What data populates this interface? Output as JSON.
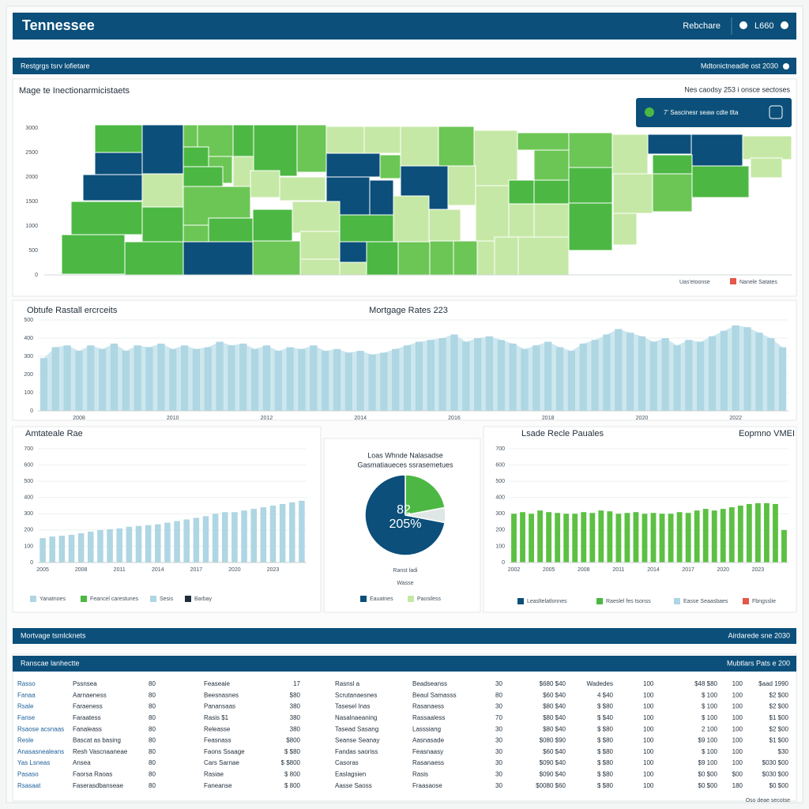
{
  "header": {
    "title": "Tennessee",
    "menu": "Rebchare",
    "year": "L660"
  },
  "section_1": {
    "title": "Restgrgs tsrv lofietare",
    "note": "Mdtonictneadle ost 2030"
  },
  "map": {
    "title": "Mage te Inectionarmicistaets",
    "note": "Nes caodsy 253 i onsce sectoses",
    "callout": "7' Sascinesr seaw cdte tlta",
    "axis_labels": [
      "3000",
      "2500",
      "2000",
      "1500",
      "1000",
      "500",
      "0"
    ],
    "legend": [
      {
        "name": "Uas'etoonse"
      },
      {
        "name": "Nanele Satates",
        "color": "#e4574a"
      }
    ]
  },
  "chart_data": [
    {
      "type": "bar",
      "heading": "Obtufe Rastall ercrceits",
      "title": "Mortgage Rates 223",
      "color": "#aed6e3",
      "ylim": [
        0,
        500
      ],
      "yticks": [
        0,
        100,
        200,
        300,
        400,
        500
      ],
      "categories": [
        null,
        null,
        null,
        "2008",
        null,
        null,
        null,
        null,
        null,
        null,
        null,
        "2010",
        null,
        null,
        null,
        null,
        null,
        null,
        null,
        "2012",
        null,
        null,
        null,
        null,
        null,
        null,
        null,
        "2014",
        null,
        null,
        null,
        null,
        null,
        null,
        null,
        "2016",
        null,
        null,
        null,
        null,
        null,
        null,
        null,
        "2018",
        null,
        null,
        null,
        null,
        null,
        null,
        null,
        "2020",
        null,
        null,
        null,
        null,
        null,
        null,
        null,
        "2022",
        null,
        null,
        null,
        null
      ],
      "values": [
        290,
        350,
        360,
        330,
        360,
        340,
        370,
        330,
        360,
        350,
        370,
        340,
        360,
        340,
        350,
        380,
        360,
        370,
        340,
        360,
        330,
        350,
        340,
        360,
        330,
        340,
        320,
        330,
        310,
        320,
        340,
        360,
        380,
        390,
        400,
        420,
        380,
        400,
        410,
        390,
        370,
        340,
        360,
        380,
        350,
        330,
        370,
        390,
        420,
        450,
        430,
        410,
        380,
        400,
        360,
        390,
        380,
        410,
        440,
        470,
        460,
        430,
        400,
        350
      ]
    },
    {
      "type": "bar",
      "heading": "Amtateale Rae",
      "color": "#aed6e3",
      "ylim": [
        0,
        700
      ],
      "yticks": [
        0,
        100,
        200,
        300,
        400,
        500,
        600,
        700
      ],
      "categories": [
        "2005",
        null,
        null,
        null,
        "2008",
        null,
        null,
        null,
        "2011",
        null,
        null,
        null,
        "2014",
        null,
        null,
        null,
        "2017",
        null,
        null,
        null,
        "2020",
        null,
        null,
        null,
        "2023",
        null,
        null,
        null
      ],
      "values": [
        150,
        160,
        165,
        170,
        180,
        190,
        200,
        205,
        210,
        220,
        225,
        230,
        235,
        245,
        255,
        265,
        275,
        285,
        300,
        310,
        310,
        320,
        330,
        340,
        350,
        360,
        370,
        380
      ],
      "legend": [
        {
          "name": "Yanatnoes",
          "color": "#aed6e3"
        },
        {
          "name": "Feancel carestunes",
          "color": "#4cb843"
        },
        {
          "name": "Sesis",
          "color": "#aed6e3"
        },
        {
          "name": "Barbay",
          "color": "#1f2d3a"
        }
      ]
    },
    {
      "type": "pie",
      "title": "Loas Whnde Nalasadse",
      "subtitle": "Gasmatiaueces ssrasemetues",
      "values": [
        22,
        6,
        72
      ],
      "colors": [
        "#4cb843",
        "#dfe6e6",
        "#0b4f7a"
      ],
      "center_labels": [
        "82",
        "205%"
      ],
      "captions": [
        "Ranst ladi",
        "Wasse"
      ],
      "legend": [
        {
          "name": "Eauatnes",
          "color": "#0b4f7a"
        },
        {
          "name": "Paosiless",
          "color": "#c6e8a6"
        }
      ]
    },
    {
      "type": "bar",
      "heading": "Lsade Recle Pauales",
      "subtitle": "Eopmno VMEI",
      "color": "#5cc043",
      "ylim": [
        0,
        700
      ],
      "yticks": [
        0,
        100,
        200,
        300,
        400,
        500,
        600,
        700
      ],
      "categories": [
        "2002",
        null,
        null,
        null,
        "2005",
        null,
        null,
        null,
        "2008",
        null,
        null,
        null,
        "2011",
        null,
        null,
        null,
        "2014",
        null,
        null,
        null,
        "2017",
        null,
        null,
        null,
        "2020",
        null,
        null,
        null,
        "2023",
        null,
        null,
        null
      ],
      "values": [
        300,
        310,
        300,
        320,
        310,
        305,
        300,
        300,
        310,
        305,
        320,
        315,
        300,
        305,
        310,
        300,
        305,
        300,
        300,
        310,
        305,
        320,
        330,
        320,
        330,
        340,
        350,
        360,
        365,
        365,
        360,
        200
      ],
      "legend": [
        {
          "name": "Leasltelatlonnes",
          "color": "#0b4f7a"
        },
        {
          "name": "Raeslel fes tsonss",
          "color": "#4cb843"
        },
        {
          "name": "Easse Seaasbaes",
          "color": "#aed6e3"
        },
        {
          "name": "Fbngsslie",
          "color": "#e4574a"
        }
      ]
    }
  ],
  "section_2": {
    "title": "Mortvage tsmlcknets",
    "note": "Airdarede sne 2030"
  },
  "table": {
    "title": "Ranscae lanhectte",
    "note": "Mubtlars Pats e 200",
    "rows": [
      [
        "Rasso",
        "Pssnsea",
        "80",
        "Feaseaie",
        "17",
        "Rasnsl a",
        "Beadseanss",
        "30",
        "$680 $40",
        "Wadedes",
        "100",
        "$48 $80",
        "100",
        "$aad 1990"
      ],
      [
        "Fanaa",
        "Aarnaeness",
        "80",
        "Beesnasnes",
        "$80",
        "Scrutanaesnes",
        "Beaul Samasss",
        "80",
        "$60 $40",
        "4 $40",
        "100",
        "$ 100",
        "100",
        "$2 $00"
      ],
      [
        "Rsale",
        "Faraeness",
        "80",
        "Panansaas",
        "380",
        "Tasesel Inas",
        "Rasanaess",
        "30",
        "$80 $40",
        "$ $80",
        "100",
        "$ 100",
        "100",
        "$2 $00"
      ],
      [
        "Fanse",
        "Faraatess",
        "80",
        "Rasis $1",
        "380",
        "Nasalnaeaning",
        "Rassaaless",
        "70",
        "$80 $40",
        "$ $40",
        "100",
        "$ 100",
        "100",
        "$1 $00"
      ],
      [
        "Rsaose acsnaas",
        "Fanaleass",
        "80",
        "Releasse",
        "380",
        "Tasead Sasang",
        "Lasssiang",
        "30",
        "$80 $40",
        "$ $80",
        "100",
        "2 100",
        "100",
        "$2 $00"
      ],
      [
        "Resle",
        "Bascat as basing",
        "80",
        "Feasnass",
        "$800",
        "Seanse Seanay",
        "Aasnasade",
        "30",
        "$080 $90",
        "$ $80",
        "100",
        "$9 100",
        "100",
        "$1 $00"
      ],
      [
        "Anasasnealeans",
        "Resh Vascnaaneae",
        "80",
        "Faons Ssaage",
        "$ $80",
        "Fandas saoriss",
        "Feasnaasy",
        "30",
        "$60 $40",
        "$ $80",
        "100",
        "$ 100",
        "100",
        "$30"
      ],
      [
        "Yas Lsneas",
        "Ansea",
        "80",
        "Cars Sarnae",
        "$ $800",
        "Casoras",
        "Rasanaess",
        "30",
        "$090 $40",
        "$ $80",
        "100",
        "$9 100",
        "100",
        "$030 $00"
      ],
      [
        "Pasaso",
        "Faorsa Raoas",
        "80",
        "Rasiae",
        "$ 800",
        "Easlagsien",
        "Rasis",
        "30",
        "$090 $40",
        "$ $80",
        "100",
        "$0 $00",
        "$00",
        "$030 $00"
      ],
      [
        "Rsasaat",
        "Faserasdbanseae",
        "80",
        "Faneanse",
        "$ 800",
        "Aasse Saoss",
        "Fraasaose",
        "30",
        "$0080 $60",
        "$ $80",
        "100",
        "$0 $00",
        "180",
        "$0 $00"
      ]
    ]
  },
  "footer": "Oso deae secotse"
}
